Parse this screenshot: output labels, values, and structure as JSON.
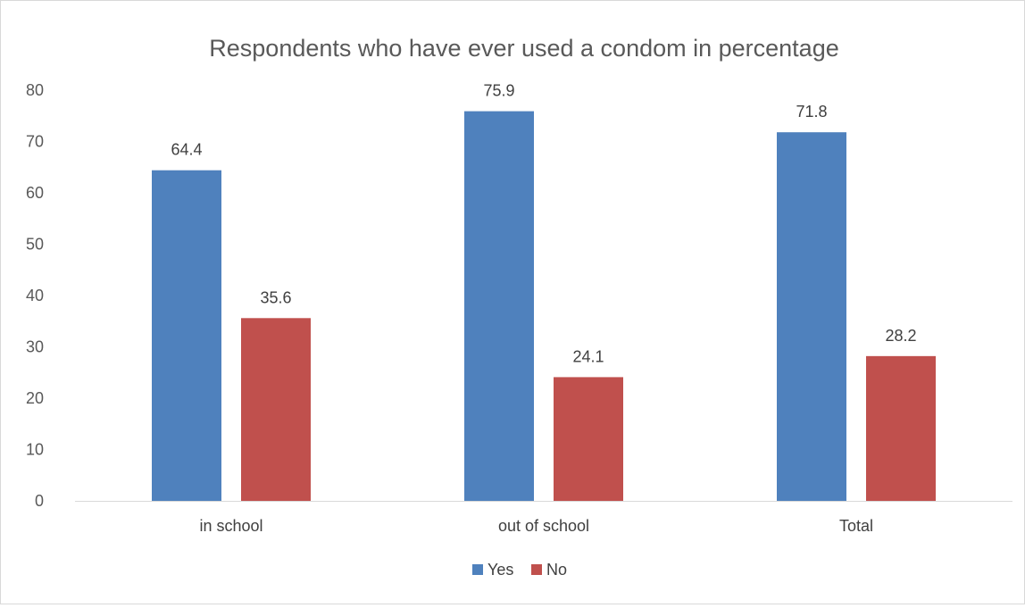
{
  "chart_data": {
    "type": "bar",
    "title": "Respondents who have ever used a condom  in percentage",
    "categories": [
      "in school",
      "out of school",
      "Total"
    ],
    "series": [
      {
        "name": "Yes",
        "values": [
          64.4,
          75.9,
          71.8
        ],
        "color": "#4f81bd"
      },
      {
        "name": "No",
        "values": [
          35.6,
          24.1,
          28.2
        ],
        "color": "#c0504d"
      }
    ],
    "xlabel": "",
    "ylabel": "",
    "ylim": [
      0,
      80
    ],
    "yticks": [
      0,
      10,
      20,
      30,
      40,
      50,
      60,
      70,
      80
    ],
    "grid": false,
    "legend": "bottom",
    "data_labels": true
  }
}
